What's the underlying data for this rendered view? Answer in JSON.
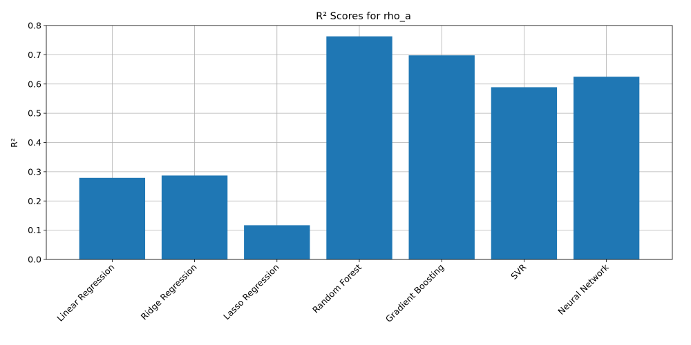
{
  "chart_data": {
    "type": "bar",
    "title": "R² Scores for rho_a",
    "xlabel": "",
    "ylabel": "R²",
    "categories": [
      "Linear Regression",
      "Ridge Regression",
      "Lasso Regression",
      "Random Forest",
      "Gradient Boosting",
      "SVR",
      "Neural Network"
    ],
    "values": [
      0.279,
      0.287,
      0.117,
      0.763,
      0.698,
      0.589,
      0.625
    ],
    "ylim": [
      0,
      0.8
    ],
    "yticks": [
      "0.0",
      "0.1",
      "0.2",
      "0.3",
      "0.4",
      "0.5",
      "0.6",
      "0.7",
      "0.8"
    ],
    "grid": true,
    "bar_color": "#1f77b4",
    "xtick_rotation": 45
  }
}
